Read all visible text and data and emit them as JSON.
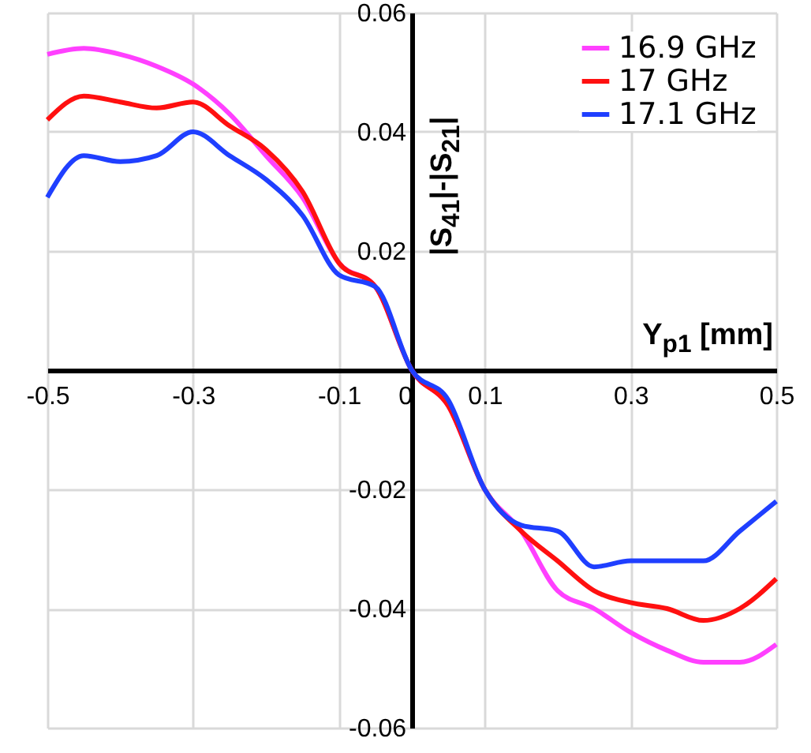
{
  "chart_data": {
    "type": "line",
    "xlabel": "Y$_{p1}$ [mm]",
    "ylabel": "|S$_{41}$|-|S$_{21}$|",
    "x": [
      -0.5,
      -0.45,
      -0.4,
      -0.35,
      -0.3,
      -0.25,
      -0.2,
      -0.15,
      -0.1,
      -0.05,
      0,
      0.05,
      0.1,
      0.15,
      0.2,
      0.25,
      0.3,
      0.35,
      0.4,
      0.45,
      0.5
    ],
    "series": [
      {
        "name": "16.9 GHz",
        "color": "#ff40ff",
        "values": [
          0.053,
          0.054,
          0.053,
          0.051,
          0.048,
          0.043,
          0.036,
          0.029,
          0.018,
          0.014,
          0,
          -0.006,
          -0.02,
          -0.027,
          -0.037,
          -0.04,
          -0.044,
          -0.047,
          -0.049,
          -0.049,
          -0.046
        ]
      },
      {
        "name": "17 GHz",
        "color": "#ff1010",
        "values": [
          0.042,
          0.046,
          0.045,
          0.044,
          0.045,
          0.041,
          0.037,
          0.03,
          0.018,
          0.014,
          0,
          -0.006,
          -0.02,
          -0.027,
          -0.032,
          -0.037,
          -0.039,
          -0.04,
          -0.042,
          -0.04,
          -0.035
        ]
      },
      {
        "name": "17.1 GHz",
        "color": "#1f3fff",
        "values": [
          0.029,
          0.036,
          0.035,
          0.036,
          0.04,
          0.036,
          0.032,
          0.026,
          0.016,
          0.014,
          0,
          -0.005,
          -0.02,
          -0.026,
          -0.027,
          -0.033,
          -0.032,
          -0.032,
          -0.032,
          -0.027,
          -0.022
        ]
      }
    ],
    "xlim": [
      -0.5,
      0.5
    ],
    "ylim": [
      -0.06,
      0.06
    ],
    "xticks": [
      -0.5,
      -0.3,
      -0.1,
      {
        "value": 0,
        "label": "0"
      },
      0.1,
      0.3,
      0.5
    ],
    "yticks": [
      -0.06,
      -0.04,
      -0.02,
      0.02,
      0.04,
      0.06
    ],
    "grid": true,
    "legend": "top right",
    "marker": "none",
    "line_style": "solid"
  }
}
